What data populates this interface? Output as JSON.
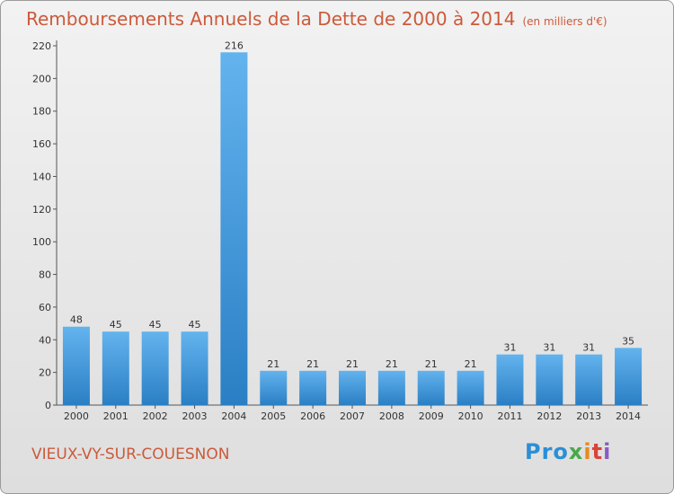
{
  "header": {
    "title": "Remboursements Annuels de la Dette de 2000 à 2014",
    "subtitle": "(en milliers d'€)"
  },
  "footer": {
    "commune": "VIEUX-VY-SUR-COUESNON",
    "logo": {
      "p1": "Pro",
      "p2": "x",
      "p3": "i",
      "p4": "t",
      "p5": "i"
    }
  },
  "colors": {
    "bar_light": "#63b3ee",
    "bar_dark": "#2a7fc4",
    "title": "#cc5a3a"
  },
  "chart_data": {
    "type": "bar",
    "title": "Remboursements Annuels de la Dette de 2000 à 2014",
    "subtitle": "(en milliers d'€)",
    "xlabel": "",
    "ylabel": "",
    "categories": [
      "2000",
      "2001",
      "2002",
      "2003",
      "2004",
      "2005",
      "2006",
      "2007",
      "2008",
      "2009",
      "2010",
      "2011",
      "2012",
      "2013",
      "2014"
    ],
    "values": [
      48,
      45,
      45,
      45,
      216,
      21,
      21,
      21,
      21,
      21,
      21,
      31,
      31,
      31,
      35
    ],
    "data_labels": [
      "48",
      "45",
      "45",
      "45",
      "216",
      "21",
      "21",
      "21",
      "21",
      "21",
      "21",
      "31",
      "31",
      "31",
      "35"
    ],
    "yticks": [
      0,
      20,
      40,
      60,
      80,
      100,
      120,
      140,
      160,
      180,
      200,
      220
    ],
    "ylim": [
      0,
      220
    ],
    "grid": false,
    "legend": "none"
  }
}
